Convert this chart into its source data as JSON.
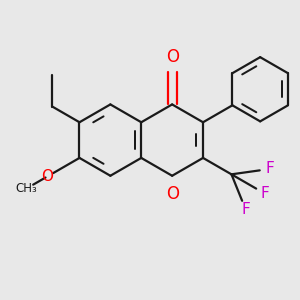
{
  "background_color": "#e8e8e8",
  "line_color": "#1a1a1a",
  "oxygen_color": "#ff0000",
  "fluorine_color": "#cc00cc",
  "bond_lw": 1.6,
  "figsize": [
    3.0,
    3.0
  ],
  "dpi": 100,
  "xlim": [
    0.0,
    3.0
  ],
  "ylim": [
    0.0,
    3.0
  ]
}
